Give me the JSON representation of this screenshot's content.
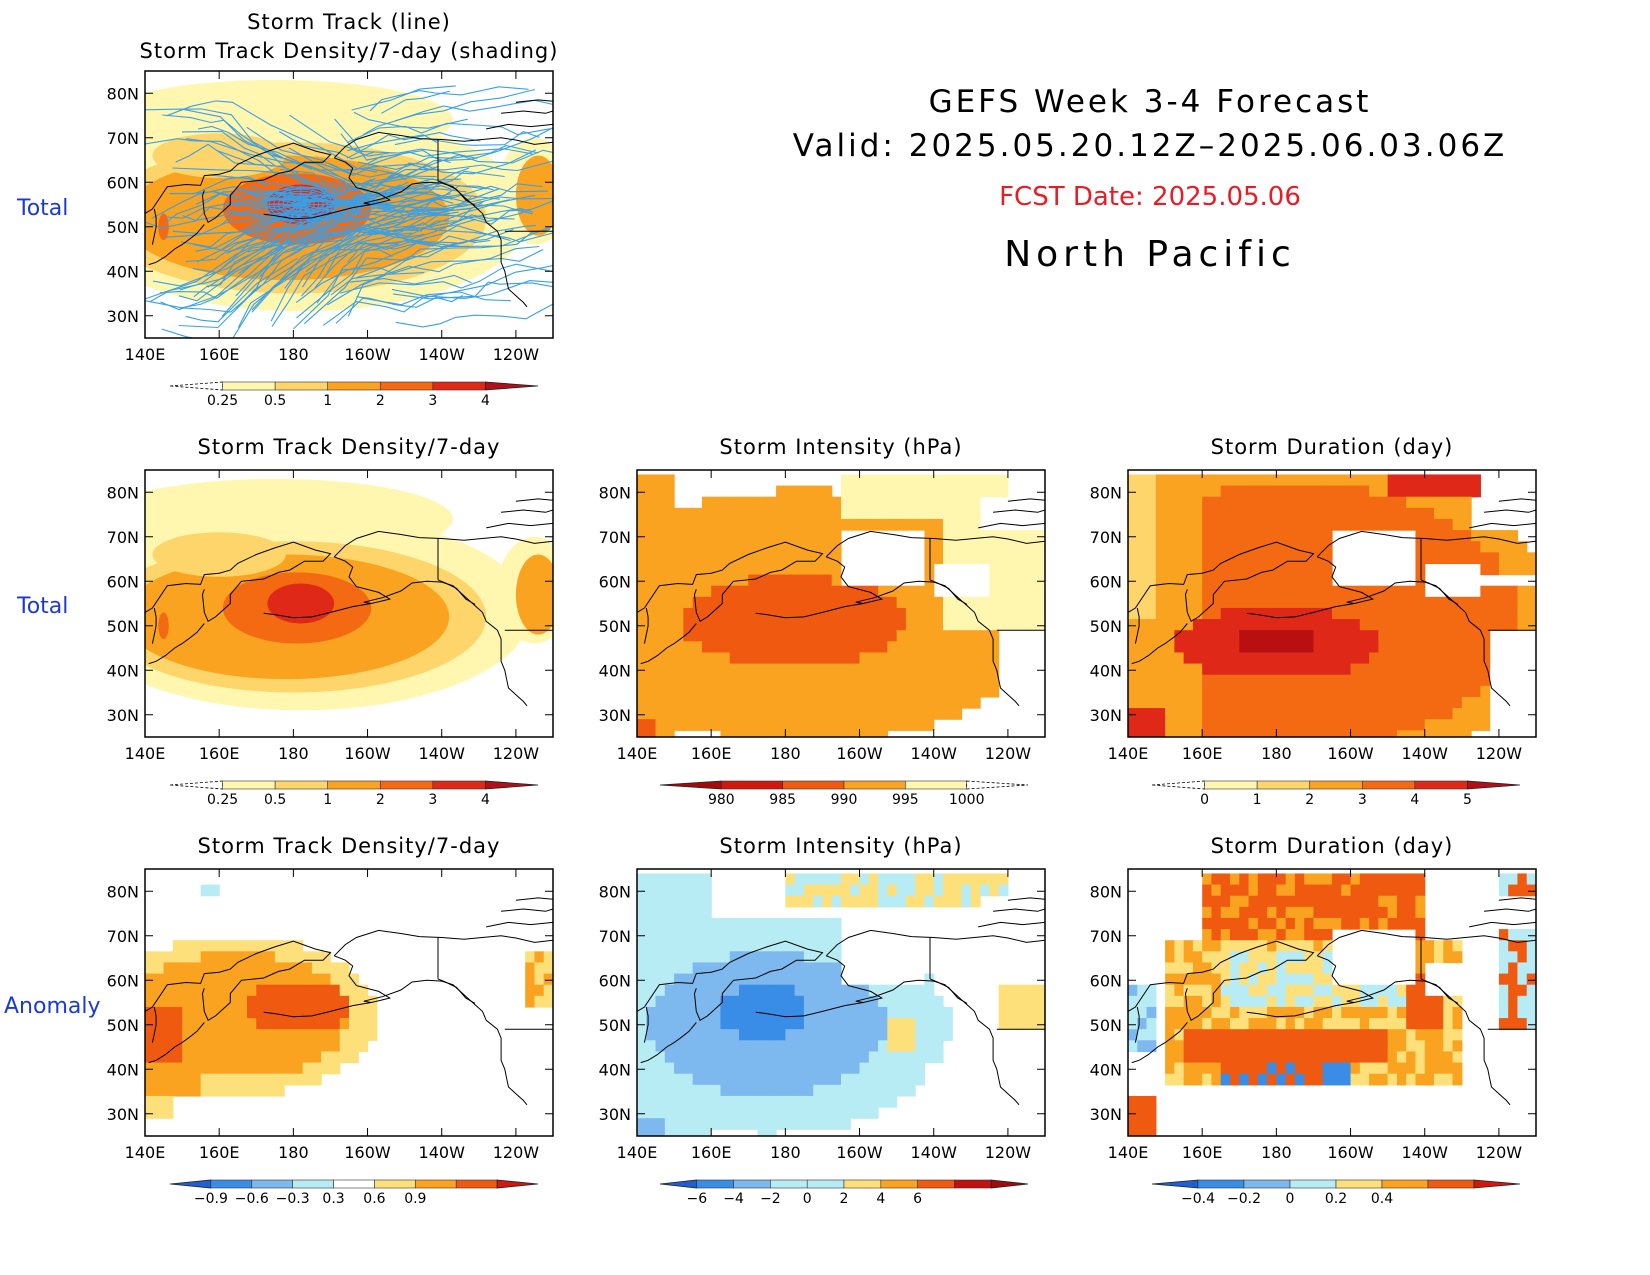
{
  "header": {
    "title": "GEFS Week 3-4 Forecast",
    "valid": "Valid: 2025.05.20.12Z–2025.06.03.06Z",
    "fcst_date": "FCST Date: 2025.05.06",
    "region": "North Pacific"
  },
  "row_labels": {
    "row0": "Total",
    "row1": "Total",
    "row2": "Anomaly"
  },
  "axes": {
    "lat_ticks": [
      "80N",
      "70N",
      "60N",
      "50N",
      "40N",
      "30N"
    ],
    "lon_ticks": [
      "140E",
      "160E",
      "180",
      "160W",
      "140W",
      "120W"
    ]
  },
  "panels": {
    "p0": {
      "title1": "Storm Track (line)",
      "title2": "Storm Track Density/7-day (shading)"
    },
    "p1": {
      "title": "Storm Track Density/7-day"
    },
    "p2": {
      "title": "Storm Intensity (hPa)"
    },
    "p3": {
      "title": "Storm Duration (day)"
    },
    "p4": {
      "title": "Storm Track Density/7-day"
    },
    "p5": {
      "title": "Storm Intensity (hPa)"
    },
    "p6": {
      "title": "Storm Duration (day)"
    }
  },
  "colorbars": {
    "density": {
      "labels": [
        "0.25",
        "0.5",
        "1",
        "2",
        "3",
        "4"
      ],
      "colors": [
        "#fff7b0",
        "#fdd56a",
        "#f9a320",
        "#f36a12",
        "#e02818"
      ]
    },
    "intensity": {
      "labels": [
        "980",
        "985",
        "990",
        "995",
        "1000"
      ],
      "colors": [
        "#d0180c",
        "#f05a10",
        "#f9a320",
        "#fff7b0"
      ]
    },
    "duration": {
      "labels": [
        "0",
        "1",
        "2",
        "3",
        "4",
        "5"
      ],
      "colors": [
        "#fff7b0",
        "#fdd56a",
        "#f9a320",
        "#f36a12",
        "#e02818"
      ]
    },
    "density_anom": {
      "labels": [
        "−0.9",
        "−0.6",
        "−0.3",
        "0.3",
        "0.6",
        "0.9"
      ],
      "colors": [
        "#3a8de6",
        "#7db8ee",
        "#b8ecf4",
        "#ffffff",
        "#fde07a",
        "#f9a320",
        "#f05a10"
      ]
    },
    "intensity_anom": {
      "labels": [
        "−6",
        "−4",
        "−2",
        "0",
        "2",
        "4",
        "6"
      ],
      "colors": [
        "#3a8de6",
        "#7db8ee",
        "#b8ecf4",
        "#b8ecf4",
        "#fde07a",
        "#f9a320",
        "#f05a10",
        "#c21010"
      ]
    },
    "duration_anom": {
      "labels": [
        "−0.4",
        "−0.2",
        "0",
        "0.2",
        "0.4"
      ],
      "colors": [
        "#3a8de6",
        "#7db8ee",
        "#b8ecf4",
        "#fde07a",
        "#f9a320",
        "#f05a10"
      ]
    }
  },
  "colors": {
    "label_blue": "#1a3ad6",
    "fcst_red": "#e81c24",
    "track_line": "#3aa0e6"
  }
}
